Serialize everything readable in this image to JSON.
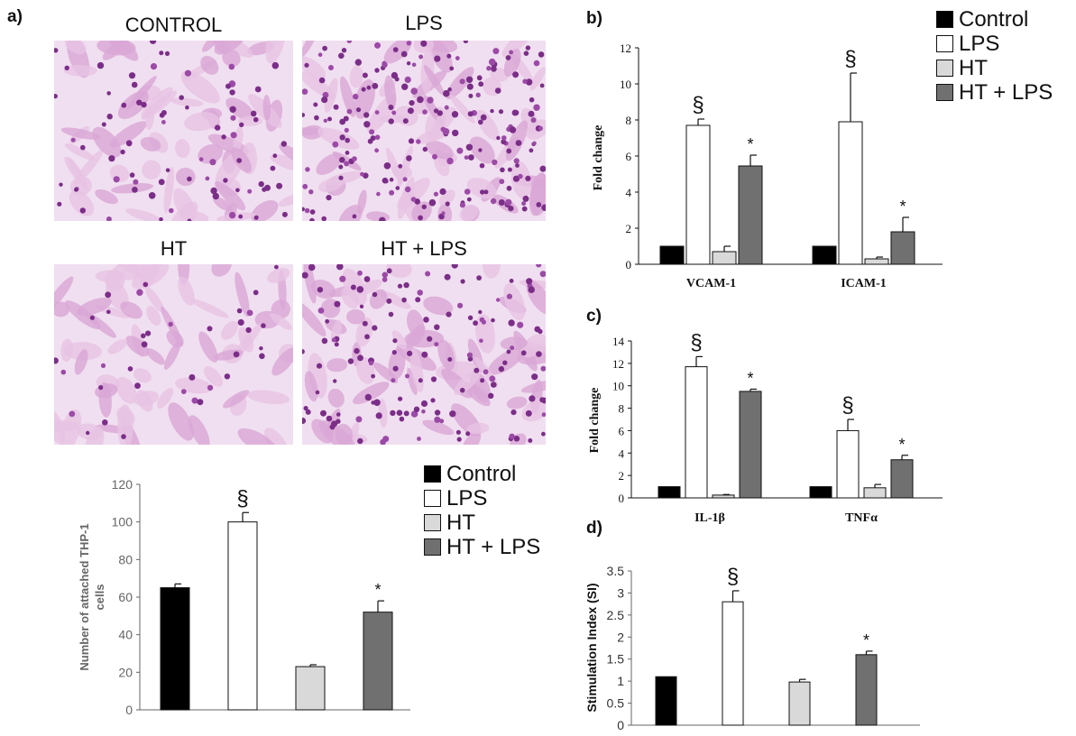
{
  "panels": {
    "a": "a)",
    "b": "b)",
    "c": "c)",
    "d": "d)"
  },
  "micrographs": [
    {
      "title": "CONTROL",
      "density": 26
    },
    {
      "title": "LPS",
      "density": 70
    },
    {
      "title": "HT",
      "density": 12
    },
    {
      "title": "HT + LPS",
      "density": 48
    }
  ],
  "legend": [
    {
      "label": "Control",
      "color": "#000000"
    },
    {
      "label": "LPS",
      "color": "#ffffff"
    },
    {
      "label": "HT",
      "color": "#d9d9d9"
    },
    {
      "label": "HT + LPS",
      "color": "#707070"
    }
  ],
  "chart_data": [
    {
      "id": "a",
      "type": "bar",
      "categories": [
        "Control",
        "LPS",
        "HT",
        "HT + LPS"
      ],
      "values": [
        65,
        100,
        23,
        52
      ],
      "errors": [
        2,
        5,
        1,
        6
      ],
      "annotations": [
        "",
        "§",
        "",
        "*"
      ],
      "ylabel": "Number of attached THP-1 cells",
      "ylim": [
        0,
        120
      ],
      "yticks": [
        0,
        20,
        40,
        60,
        80,
        100,
        120
      ],
      "colors": [
        "#000000",
        "#ffffff",
        "#d9d9d9",
        "#707070"
      ],
      "grid": false
    },
    {
      "id": "b",
      "type": "bar",
      "categories": [
        "VCAM-1",
        "ICAM-1"
      ],
      "series": [
        {
          "name": "Control",
          "values": [
            1.0,
            1.0
          ],
          "errors": [
            0,
            0
          ]
        },
        {
          "name": "LPS",
          "values": [
            7.7,
            7.9
          ],
          "errors": [
            0.35,
            2.7
          ]
        },
        {
          "name": "HT",
          "values": [
            0.7,
            0.3
          ],
          "errors": [
            0.3,
            0.1
          ]
        },
        {
          "name": "HT + LPS",
          "values": [
            5.45,
            1.8
          ],
          "errors": [
            0.6,
            0.8
          ]
        }
      ],
      "annotations": [
        [
          "",
          "§",
          "",
          "*"
        ],
        [
          "",
          "§",
          "",
          "*"
        ]
      ],
      "ylabel": "Fold change",
      "ylim": [
        0,
        12
      ],
      "yticks": [
        0,
        2,
        4,
        6,
        8,
        10,
        12
      ],
      "colors": [
        "#000000",
        "#ffffff",
        "#d9d9d9",
        "#707070"
      ],
      "grid": false
    },
    {
      "id": "c",
      "type": "bar",
      "categories": [
        "IL-1β",
        "TNFα"
      ],
      "series": [
        {
          "name": "Control",
          "values": [
            1.0,
            1.0
          ],
          "errors": [
            0,
            0
          ]
        },
        {
          "name": "LPS",
          "values": [
            11.7,
            6.0
          ],
          "errors": [
            0.9,
            1.0
          ]
        },
        {
          "name": "HT",
          "values": [
            0.25,
            0.9
          ],
          "errors": [
            0.05,
            0.3
          ]
        },
        {
          "name": "HT + LPS",
          "values": [
            9.5,
            3.4
          ],
          "errors": [
            0.2,
            0.4
          ]
        }
      ],
      "annotations": [
        [
          "",
          "§",
          "",
          "*"
        ],
        [
          "",
          "§",
          "",
          "*"
        ]
      ],
      "ylabel": "Fold change",
      "ylim": [
        0,
        14
      ],
      "yticks": [
        0,
        2,
        4,
        6,
        8,
        10,
        12,
        14
      ],
      "colors": [
        "#000000",
        "#ffffff",
        "#d9d9d9",
        "#707070"
      ],
      "grid": false
    },
    {
      "id": "d",
      "type": "bar",
      "categories": [
        "Control",
        "LPS",
        "HT",
        "HT + LPS"
      ],
      "values": [
        1.1,
        2.8,
        0.98,
        1.6
      ],
      "errors": [
        0,
        0.25,
        0.06,
        0.08
      ],
      "annotations": [
        "",
        "§",
        "",
        "*"
      ],
      "ylabel": "Stimulation Index (SI)",
      "ylim": [
        0,
        3.5
      ],
      "yticks": [
        "0",
        "0.5",
        "1",
        "1.5",
        "2",
        "2.5",
        "3",
        "3.5"
      ],
      "colors": [
        "#000000",
        "#ffffff",
        "#d9d9d9",
        "#707070"
      ],
      "grid": false
    }
  ]
}
